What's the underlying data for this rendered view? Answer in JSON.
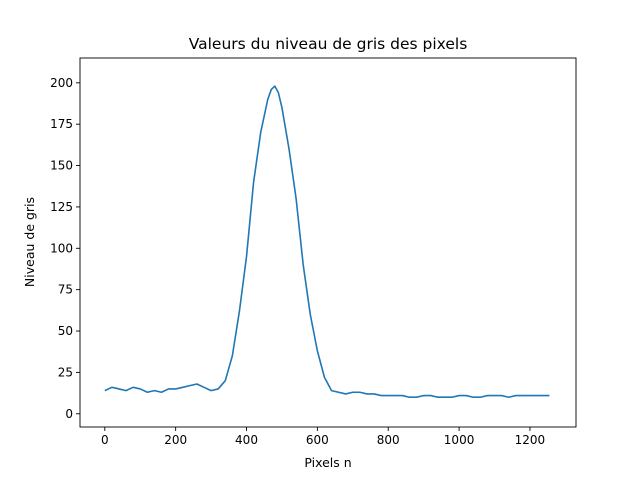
{
  "chart_data": {
    "type": "line",
    "title": "Valeurs du niveau de gris des pixels",
    "xlabel": "Pixels n",
    "ylabel": "Niveau de gris",
    "xlim": [
      -70,
      1330
    ],
    "ylim": [
      -8,
      215
    ],
    "xticks": [
      0,
      200,
      400,
      600,
      800,
      1000,
      1200
    ],
    "yticks": [
      0,
      25,
      50,
      75,
      100,
      125,
      150,
      175,
      200
    ],
    "grid": false,
    "legend": "none",
    "series": [
      {
        "color": "#1f77b4",
        "x": [
          0,
          20,
          40,
          60,
          80,
          100,
          120,
          140,
          160,
          180,
          200,
          220,
          240,
          260,
          280,
          300,
          320,
          340,
          360,
          380,
          400,
          420,
          440,
          460,
          470,
          480,
          490,
          500,
          520,
          540,
          560,
          580,
          600,
          620,
          640,
          660,
          680,
          700,
          720,
          740,
          760,
          780,
          800,
          820,
          840,
          860,
          880,
          900,
          920,
          940,
          960,
          980,
          1000,
          1020,
          1040,
          1060,
          1080,
          1100,
          1120,
          1140,
          1160,
          1180,
          1200,
          1220,
          1240,
          1255
        ],
        "y": [
          14,
          16,
          15,
          14,
          16,
          15,
          13,
          14,
          13,
          15,
          15,
          16,
          17,
          18,
          16,
          14,
          15,
          20,
          35,
          62,
          95,
          140,
          170,
          190,
          196,
          198,
          194,
          185,
          160,
          130,
          90,
          60,
          38,
          22,
          14,
          13,
          12,
          13,
          13,
          12,
          12,
          11,
          11,
          11,
          11,
          10,
          10,
          11,
          11,
          10,
          10,
          10,
          11,
          11,
          10,
          10,
          11,
          11,
          11,
          10,
          11,
          11,
          11,
          11,
          11,
          11
        ]
      }
    ]
  }
}
